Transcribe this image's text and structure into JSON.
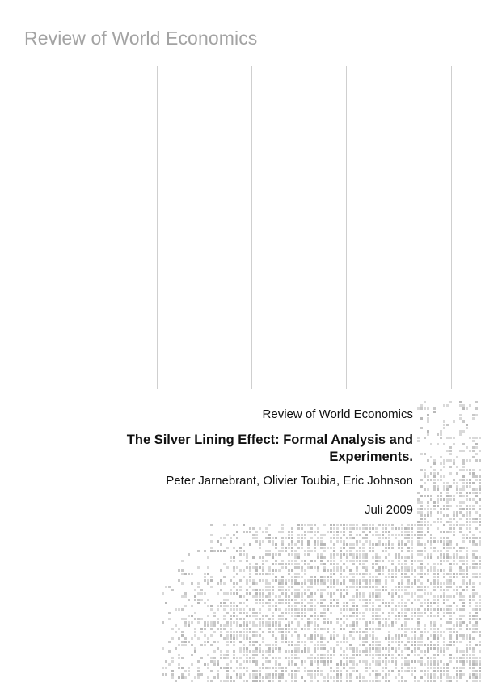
{
  "header": {
    "title": "Review of World Economics"
  },
  "cover": {
    "journal": "Review of World Economics",
    "title_line1": "The Silver Lining Effect: Formal Analysis and",
    "title_line2": "Experiments.",
    "authors": "Peter Jarnebrant, Olivier Toubia, Eric Johnson",
    "date": "Juli 2009"
  },
  "colors": {
    "header_text": "#a3a3a3",
    "body_text": "#111111",
    "rule_lines": "#cfcfcf",
    "pattern": "#c8c8c8"
  }
}
